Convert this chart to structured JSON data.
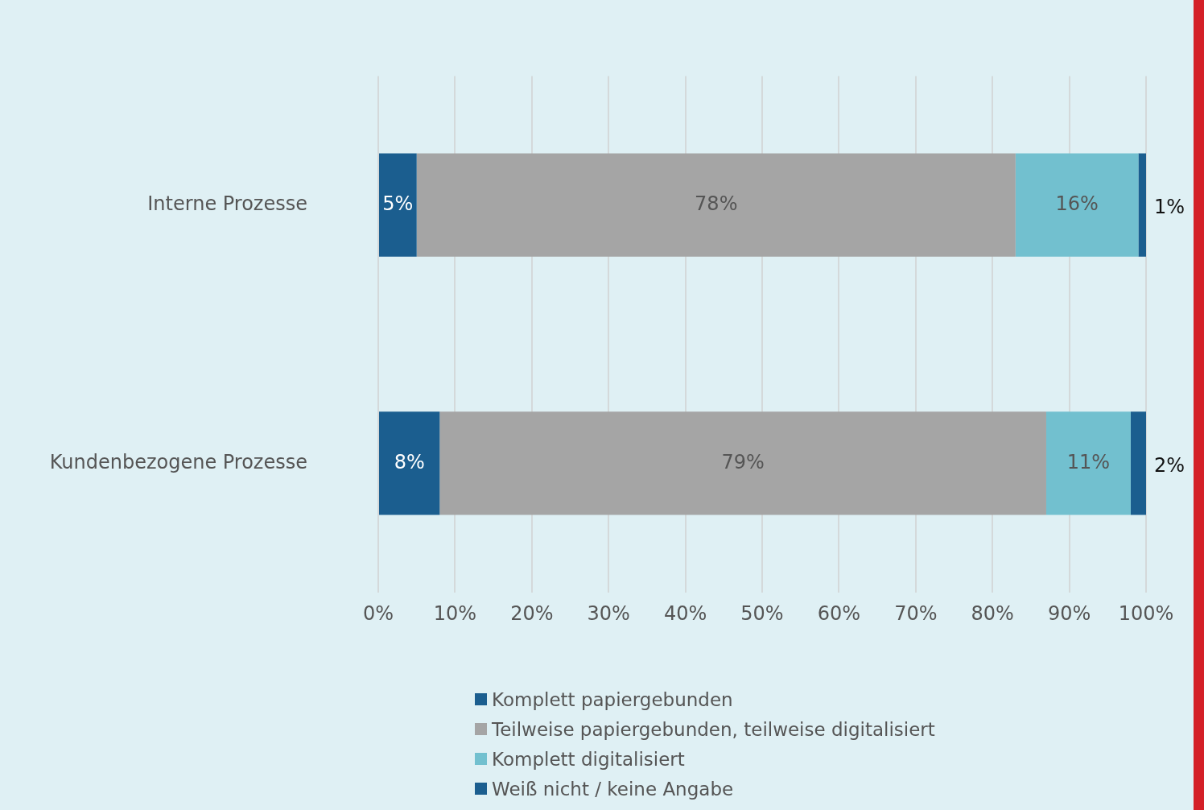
{
  "chart_data": {
    "type": "bar",
    "orientation": "horizontal",
    "stacked": true,
    "categories": [
      "Interne Prozesse",
      "Kundenbezogene Prozesse"
    ],
    "series": [
      {
        "name": "Komplett papiergebunden",
        "color": "#1b5e8f",
        "values": [
          5,
          8
        ],
        "value_labels": [
          "5%",
          "8%"
        ]
      },
      {
        "name": "Teilweise papiergebunden, teilweise digitalisiert",
        "color": "#a5a5a5",
        "values": [
          78,
          79
        ],
        "value_labels": [
          "78%",
          "79%"
        ]
      },
      {
        "name": "Komplett digitalisiert",
        "color": "#72c0cf",
        "values": [
          16,
          11
        ],
        "value_labels": [
          "16%",
          "11%"
        ]
      },
      {
        "name": "Weiß nicht / keine Angabe",
        "color": "#1b5e8f",
        "values": [
          1,
          2
        ],
        "value_labels": [
          "1%",
          "2%"
        ]
      }
    ],
    "xlim": [
      0,
      100
    ],
    "xticks": [
      {
        "value": 0,
        "label": "0%"
      },
      {
        "value": 10,
        "label": "10%"
      },
      {
        "value": 20,
        "label": "20%"
      },
      {
        "value": 30,
        "label": "30%"
      },
      {
        "value": 40,
        "label": "40%"
      },
      {
        "value": 50,
        "label": "50%"
      },
      {
        "value": 60,
        "label": "60%"
      },
      {
        "value": 70,
        "label": "70%"
      },
      {
        "value": 80,
        "label": "80%"
      },
      {
        "value": 90,
        "label": "90%"
      },
      {
        "value": 100,
        "label": "100%"
      }
    ],
    "grid": "x",
    "legend": "bottom"
  }
}
